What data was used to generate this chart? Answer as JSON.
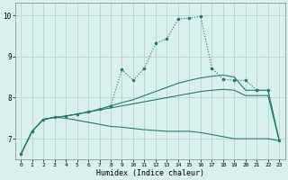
{
  "xlabel": "Humidex (Indice chaleur)",
  "bg_color": "#d8f0ee",
  "grid_color": "#b8dbd8",
  "line_color": "#2a7a6a",
  "xlim": [
    -0.5,
    23.5
  ],
  "ylim": [
    6.5,
    10.3
  ],
  "xticks": [
    0,
    1,
    2,
    3,
    4,
    5,
    6,
    7,
    8,
    9,
    10,
    11,
    12,
    13,
    14,
    15,
    16,
    17,
    18,
    19,
    20,
    21,
    22,
    23
  ],
  "yticks": [
    7,
    8,
    9,
    10
  ],
  "curve1_x": [
    0,
    1,
    2,
    3,
    4,
    5,
    6,
    7,
    8,
    9,
    10,
    11,
    12,
    13,
    14,
    15,
    16,
    17,
    18,
    19,
    20,
    21,
    22,
    23
  ],
  "curve1_y": [
    6.62,
    7.18,
    7.47,
    7.52,
    7.55,
    7.6,
    7.65,
    7.72,
    7.8,
    8.68,
    8.42,
    8.72,
    9.33,
    9.43,
    9.92,
    9.93,
    9.98,
    8.72,
    8.45,
    8.42,
    8.42,
    8.18,
    8.18,
    6.95
  ],
  "curve2_x": [
    0,
    1,
    2,
    3,
    4,
    5,
    6,
    7,
    8,
    9,
    10,
    11,
    12,
    13,
    14,
    15,
    16,
    17,
    18,
    19,
    20,
    21,
    22,
    23
  ],
  "curve2_y": [
    6.62,
    7.18,
    7.47,
    7.52,
    7.55,
    7.6,
    7.65,
    7.72,
    7.8,
    7.88,
    7.95,
    8.05,
    8.15,
    8.25,
    8.35,
    8.42,
    8.48,
    8.52,
    8.55,
    8.5,
    8.18,
    8.18,
    8.18,
    6.95
  ],
  "curve3_x": [
    0,
    1,
    2,
    3,
    4,
    5,
    6,
    7,
    8,
    9,
    10,
    11,
    12,
    13,
    14,
    15,
    16,
    17,
    18,
    19,
    20,
    21,
    22,
    23
  ],
  "curve3_y": [
    6.62,
    7.18,
    7.47,
    7.52,
    7.55,
    7.6,
    7.65,
    7.7,
    7.75,
    7.8,
    7.85,
    7.9,
    7.95,
    8.0,
    8.05,
    8.1,
    8.15,
    8.18,
    8.2,
    8.18,
    8.05,
    8.05,
    8.05,
    6.95
  ],
  "curve4_x": [
    0,
    1,
    2,
    3,
    4,
    5,
    6,
    7,
    8,
    9,
    10,
    11,
    12,
    13,
    14,
    15,
    16,
    17,
    18,
    19,
    20,
    21,
    22,
    23
  ],
  "curve4_y": [
    6.62,
    7.18,
    7.47,
    7.52,
    7.5,
    7.45,
    7.4,
    7.35,
    7.3,
    7.28,
    7.25,
    7.22,
    7.2,
    7.18,
    7.18,
    7.18,
    7.15,
    7.1,
    7.05,
    7.0,
    7.0,
    7.0,
    7.0,
    6.95
  ]
}
